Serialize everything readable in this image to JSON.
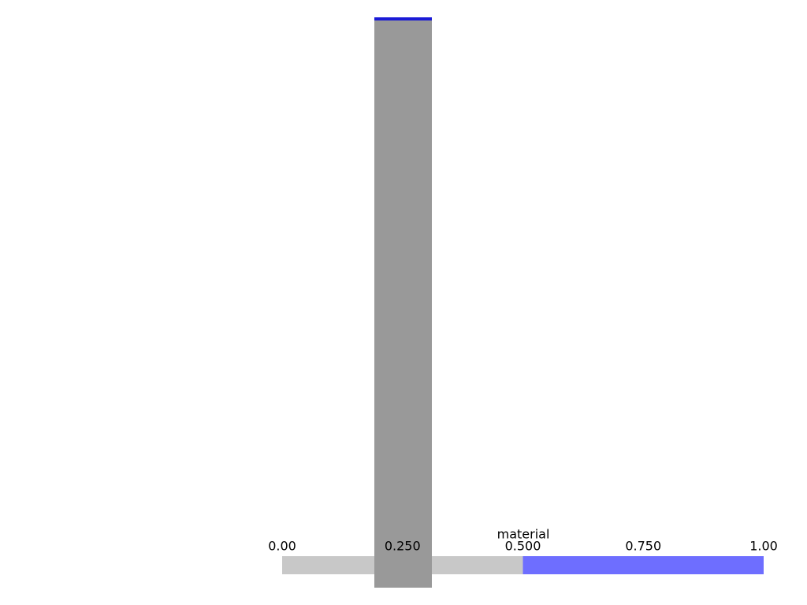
{
  "scalar_bar": {
    "title": "material",
    "range": [
      0,
      1
    ],
    "ticks": [
      {
        "value": 0,
        "label": "0.00"
      },
      {
        "value": 0.25,
        "label": "0.250"
      },
      {
        "value": 0.5,
        "label": "0.500"
      },
      {
        "value": 0.75,
        "label": "0.750"
      },
      {
        "value": 1,
        "label": "1.00"
      }
    ],
    "colors": [
      "#c8c8c8",
      "#6e6eff"
    ]
  }
}
